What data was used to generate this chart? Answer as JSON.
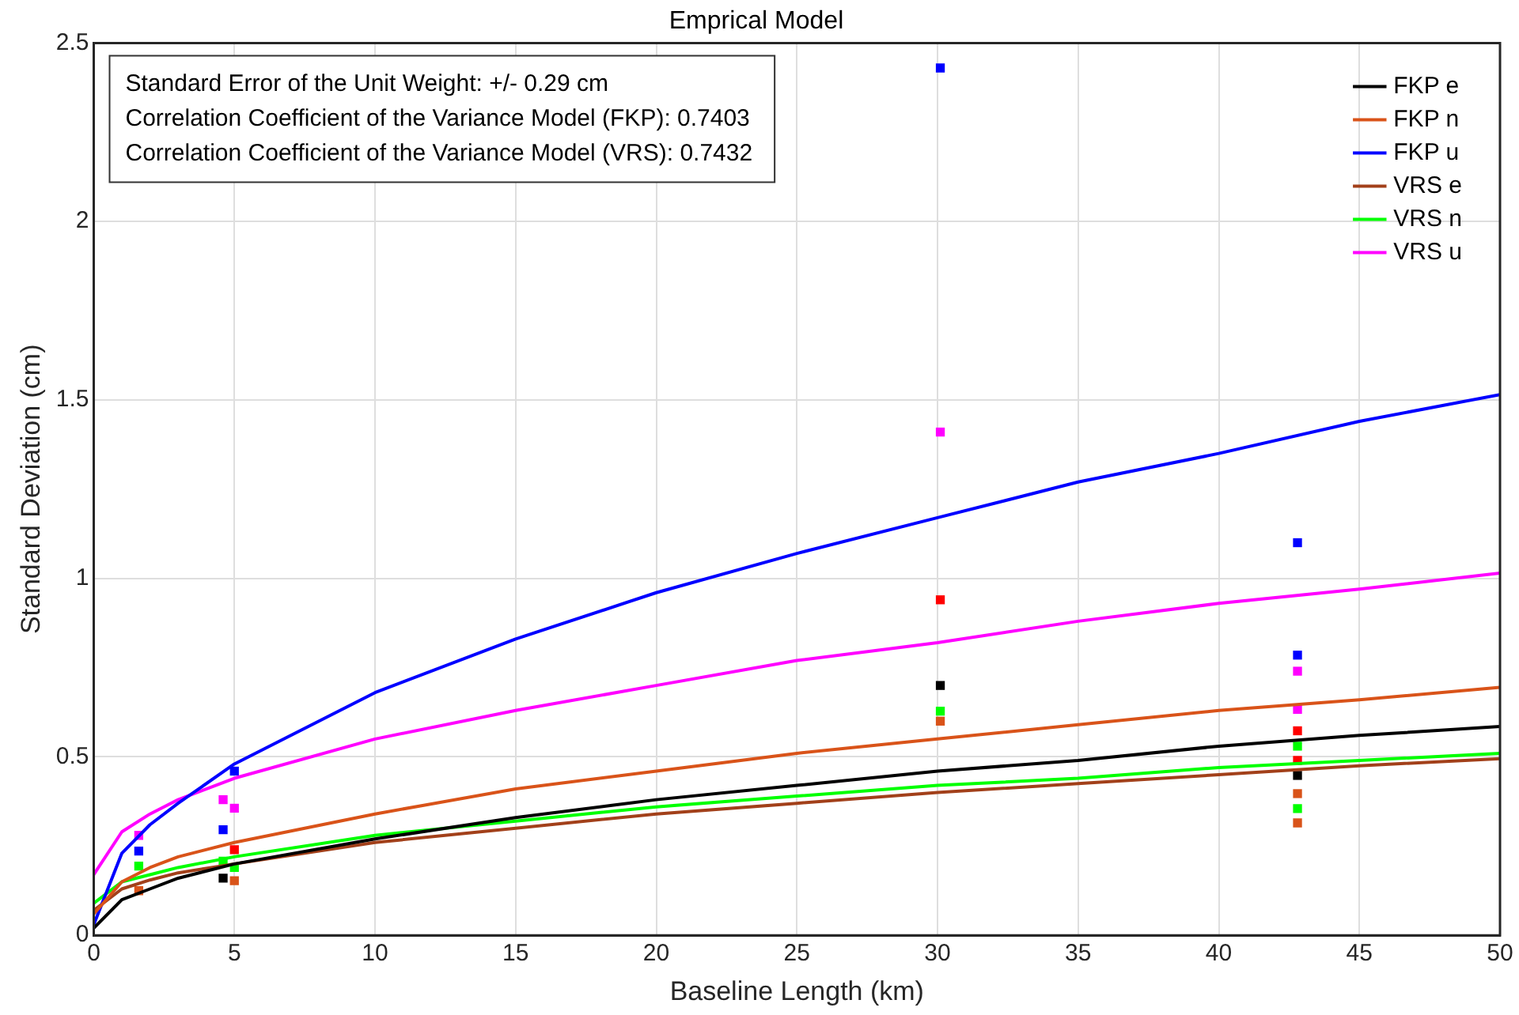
{
  "chart_data": {
    "type": "line",
    "title": "Emprical Model",
    "xlabel": "Baseline Length (km)",
    "ylabel": "Standard Deviation (cm)",
    "annotations": [
      "Standard Error of the Unit Weight: +/- 0.29 cm",
      "Correlation Coefficient of the Variance Model (FKP): 0.7403",
      "Correlation Coefficient of the Variance Model (VRS): 0.7432"
    ],
    "xlim": [
      0,
      50
    ],
    "xticks": [
      0,
      5,
      10,
      15,
      20,
      25,
      30,
      35,
      40,
      45,
      50
    ],
    "ylim": [
      0,
      2.5
    ],
    "yticks": [
      0,
      0.5,
      1,
      1.5,
      2,
      2.5
    ],
    "grid": true,
    "legend": "top right",
    "series": [
      {
        "name": "FKP e",
        "type": "line",
        "color": "#000000",
        "marker": "none",
        "x": [
          0,
          1,
          2,
          3,
          5,
          10,
          15,
          20,
          25,
          30,
          35,
          40,
          45,
          50
        ],
        "values": [
          0.02,
          0.1,
          0.13,
          0.16,
          0.2,
          0.27,
          0.33,
          0.38,
          0.42,
          0.46,
          0.49,
          0.53,
          0.56,
          0.585
        ]
      },
      {
        "name": "FKP n",
        "type": "line",
        "color": "#d95319",
        "marker": "none",
        "x": [
          0,
          1,
          2,
          3,
          5,
          10,
          15,
          20,
          25,
          30,
          35,
          40,
          45,
          50
        ],
        "values": [
          0.06,
          0.15,
          0.19,
          0.22,
          0.26,
          0.34,
          0.41,
          0.46,
          0.51,
          0.55,
          0.59,
          0.63,
          0.66,
          0.695
        ]
      },
      {
        "name": "FKP u",
        "type": "line",
        "color": "#0000ff",
        "marker": "none",
        "x": [
          0,
          1,
          2,
          3,
          5,
          10,
          15,
          20,
          25,
          30,
          35,
          40,
          45,
          50
        ],
        "values": [
          0.03,
          0.23,
          0.31,
          0.37,
          0.48,
          0.68,
          0.83,
          0.96,
          1.07,
          1.17,
          1.27,
          1.35,
          1.44,
          1.515
        ]
      },
      {
        "name": "VRS e",
        "type": "line",
        "color": "#a2401a",
        "marker": "none",
        "x": [
          0,
          1,
          2,
          3,
          5,
          10,
          15,
          20,
          25,
          30,
          35,
          40,
          45,
          50
        ],
        "values": [
          0.07,
          0.13,
          0.155,
          0.175,
          0.2,
          0.26,
          0.3,
          0.34,
          0.37,
          0.4,
          0.425,
          0.45,
          0.475,
          0.495
        ]
      },
      {
        "name": "VRS n",
        "type": "line",
        "color": "#00ff00",
        "marker": "none",
        "x": [
          0,
          1,
          2,
          3,
          5,
          10,
          15,
          20,
          25,
          30,
          35,
          40,
          45,
          50
        ],
        "values": [
          0.09,
          0.15,
          0.17,
          0.19,
          0.22,
          0.28,
          0.32,
          0.36,
          0.39,
          0.42,
          0.44,
          0.47,
          0.49,
          0.51
        ]
      },
      {
        "name": "VRS u",
        "type": "line",
        "color": "#ff00ff",
        "marker": "none",
        "x": [
          0,
          1,
          2,
          3,
          5,
          10,
          15,
          20,
          25,
          30,
          35,
          40,
          45,
          50
        ],
        "values": [
          0.17,
          0.29,
          0.34,
          0.38,
          0.44,
          0.55,
          0.63,
          0.7,
          0.77,
          0.82,
          0.88,
          0.93,
          0.97,
          1.015
        ]
      },
      {
        "type": "scatter",
        "color": "#000000",
        "marker": "square",
        "x": [
          4.6,
          30.1,
          42.8
        ],
        "values": [
          0.16,
          0.7,
          0.448
        ]
      },
      {
        "type": "scatter",
        "color": "#d95319",
        "marker": "square",
        "x": [
          1.6,
          4.6,
          5.0,
          30.1,
          42.8,
          42.8
        ],
        "values": [
          0.125,
          null,
          0.153,
          0.6,
          0.397,
          0.315
        ]
      },
      {
        "type": "scatter",
        "color": "#0000ff",
        "marker": "square",
        "x": [
          1.6,
          4.6,
          5.0,
          30.1,
          42.8,
          42.8
        ],
        "values": [
          0.236,
          0.296,
          0.46,
          2.43,
          1.1,
          0.785
        ]
      },
      {
        "type": "scatter",
        "color": "#ff0000",
        "marker": "square",
        "x": [
          5.0,
          30.1,
          42.8,
          42.8
        ],
        "values": [
          0.24,
          0.94,
          0.573,
          0.49
        ]
      },
      {
        "type": "scatter",
        "color": "#00ff00",
        "marker": "square",
        "x": [
          1.6,
          4.6,
          5.0,
          30.1,
          42.8,
          42.8
        ],
        "values": [
          0.194,
          0.208,
          0.19,
          0.628,
          0.53,
          0.355
        ]
      },
      {
        "type": "scatter",
        "color": "#ff00ff",
        "marker": "square",
        "x": [
          1.6,
          4.6,
          5.0,
          30.1,
          42.8,
          42.8
        ],
        "values": [
          0.28,
          0.38,
          0.356,
          1.41,
          0.74,
          0.633
        ]
      }
    ]
  }
}
